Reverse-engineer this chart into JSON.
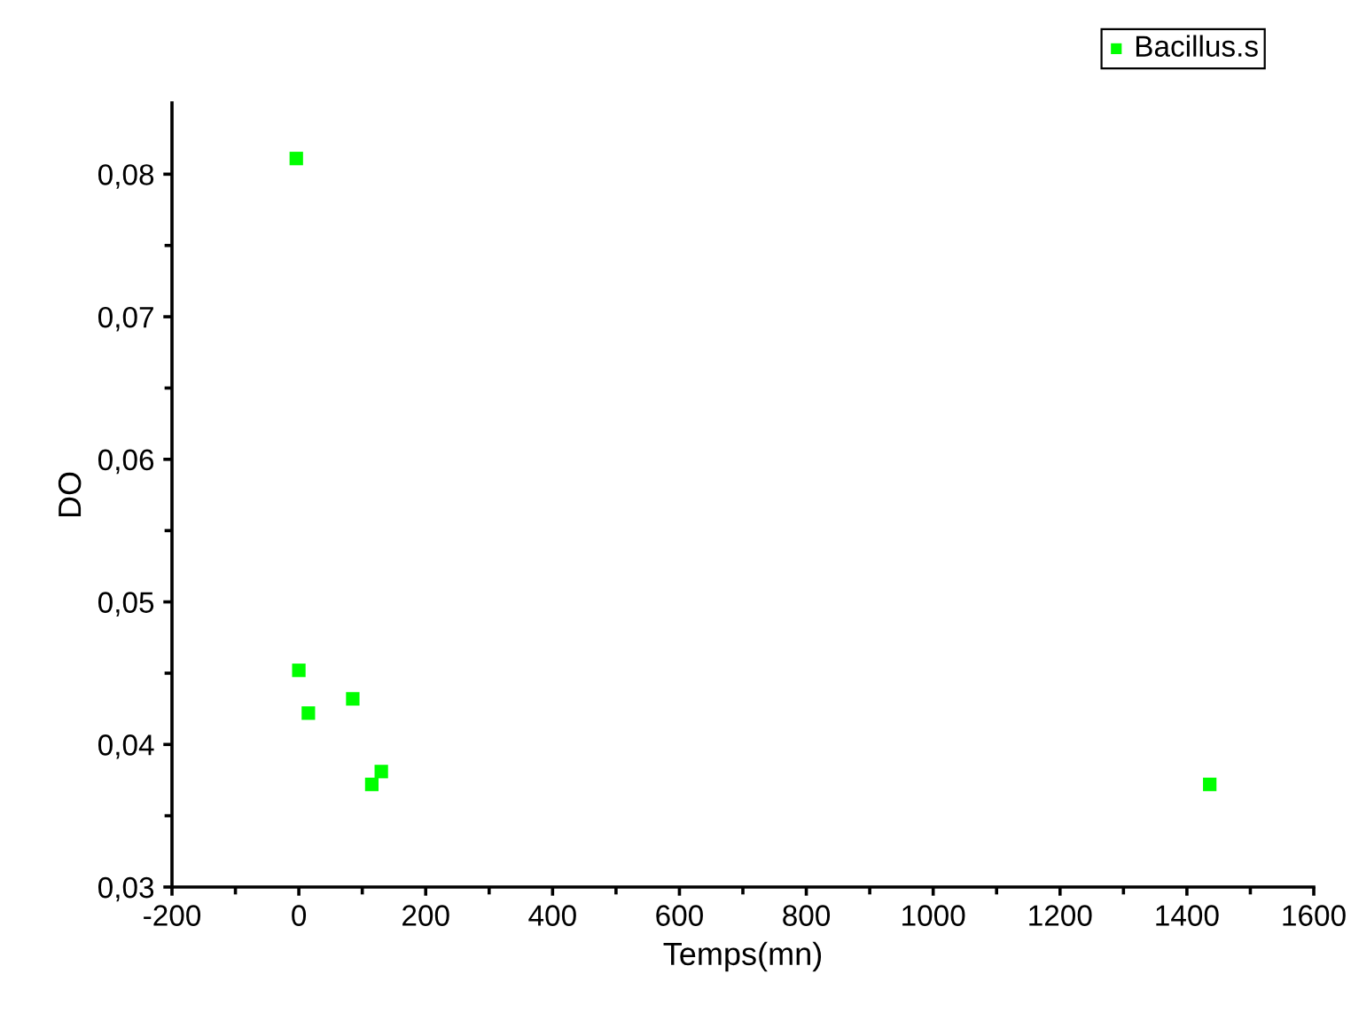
{
  "chart_data": {
    "type": "scatter",
    "xlabel": "Temps(mn)",
    "ylabel": "DO",
    "legend": "top right",
    "marker": "square",
    "grid": false,
    "series": [
      {
        "name": "Bacillus.s",
        "color": "#00ff00",
        "x": [
          -4,
          0,
          15,
          85,
          115,
          130,
          1436
        ],
        "values": [
          0.0811,
          0.0452,
          0.0422,
          0.0432,
          0.0372,
          0.0381,
          0.0372
        ]
      }
    ],
    "xlim": [
      -200,
      1600
    ],
    "xticks": [
      -200,
      {
        "value": -100,
        "label": null
      },
      0,
      {
        "value": 100,
        "label": null
      },
      200,
      {
        "value": 300,
        "label": null
      },
      400,
      {
        "value": 500,
        "label": null
      },
      600,
      {
        "value": 700,
        "label": null
      },
      800,
      {
        "value": 900,
        "label": null
      },
      1000,
      {
        "value": 1100,
        "label": null
      },
      1200,
      {
        "value": 1300,
        "label": null
      },
      1400,
      {
        "value": 1500,
        "label": null
      },
      1600
    ],
    "ylim": [
      0.03,
      0.085
    ],
    "yticks": [
      {
        "value": 0.03,
        "label": "0,03"
      },
      {
        "value": 0.035,
        "label": null
      },
      {
        "value": 0.04,
        "label": "0,04"
      },
      {
        "value": 0.045,
        "label": null
      },
      {
        "value": 0.05,
        "label": "0,05"
      },
      {
        "value": 0.055,
        "label": null
      },
      {
        "value": 0.06,
        "label": "0,06"
      },
      {
        "value": 0.065,
        "label": null
      },
      {
        "value": 0.07,
        "label": "0,07"
      },
      {
        "value": 0.075,
        "label": null
      },
      {
        "value": 0.08,
        "label": "0,08"
      }
    ]
  }
}
